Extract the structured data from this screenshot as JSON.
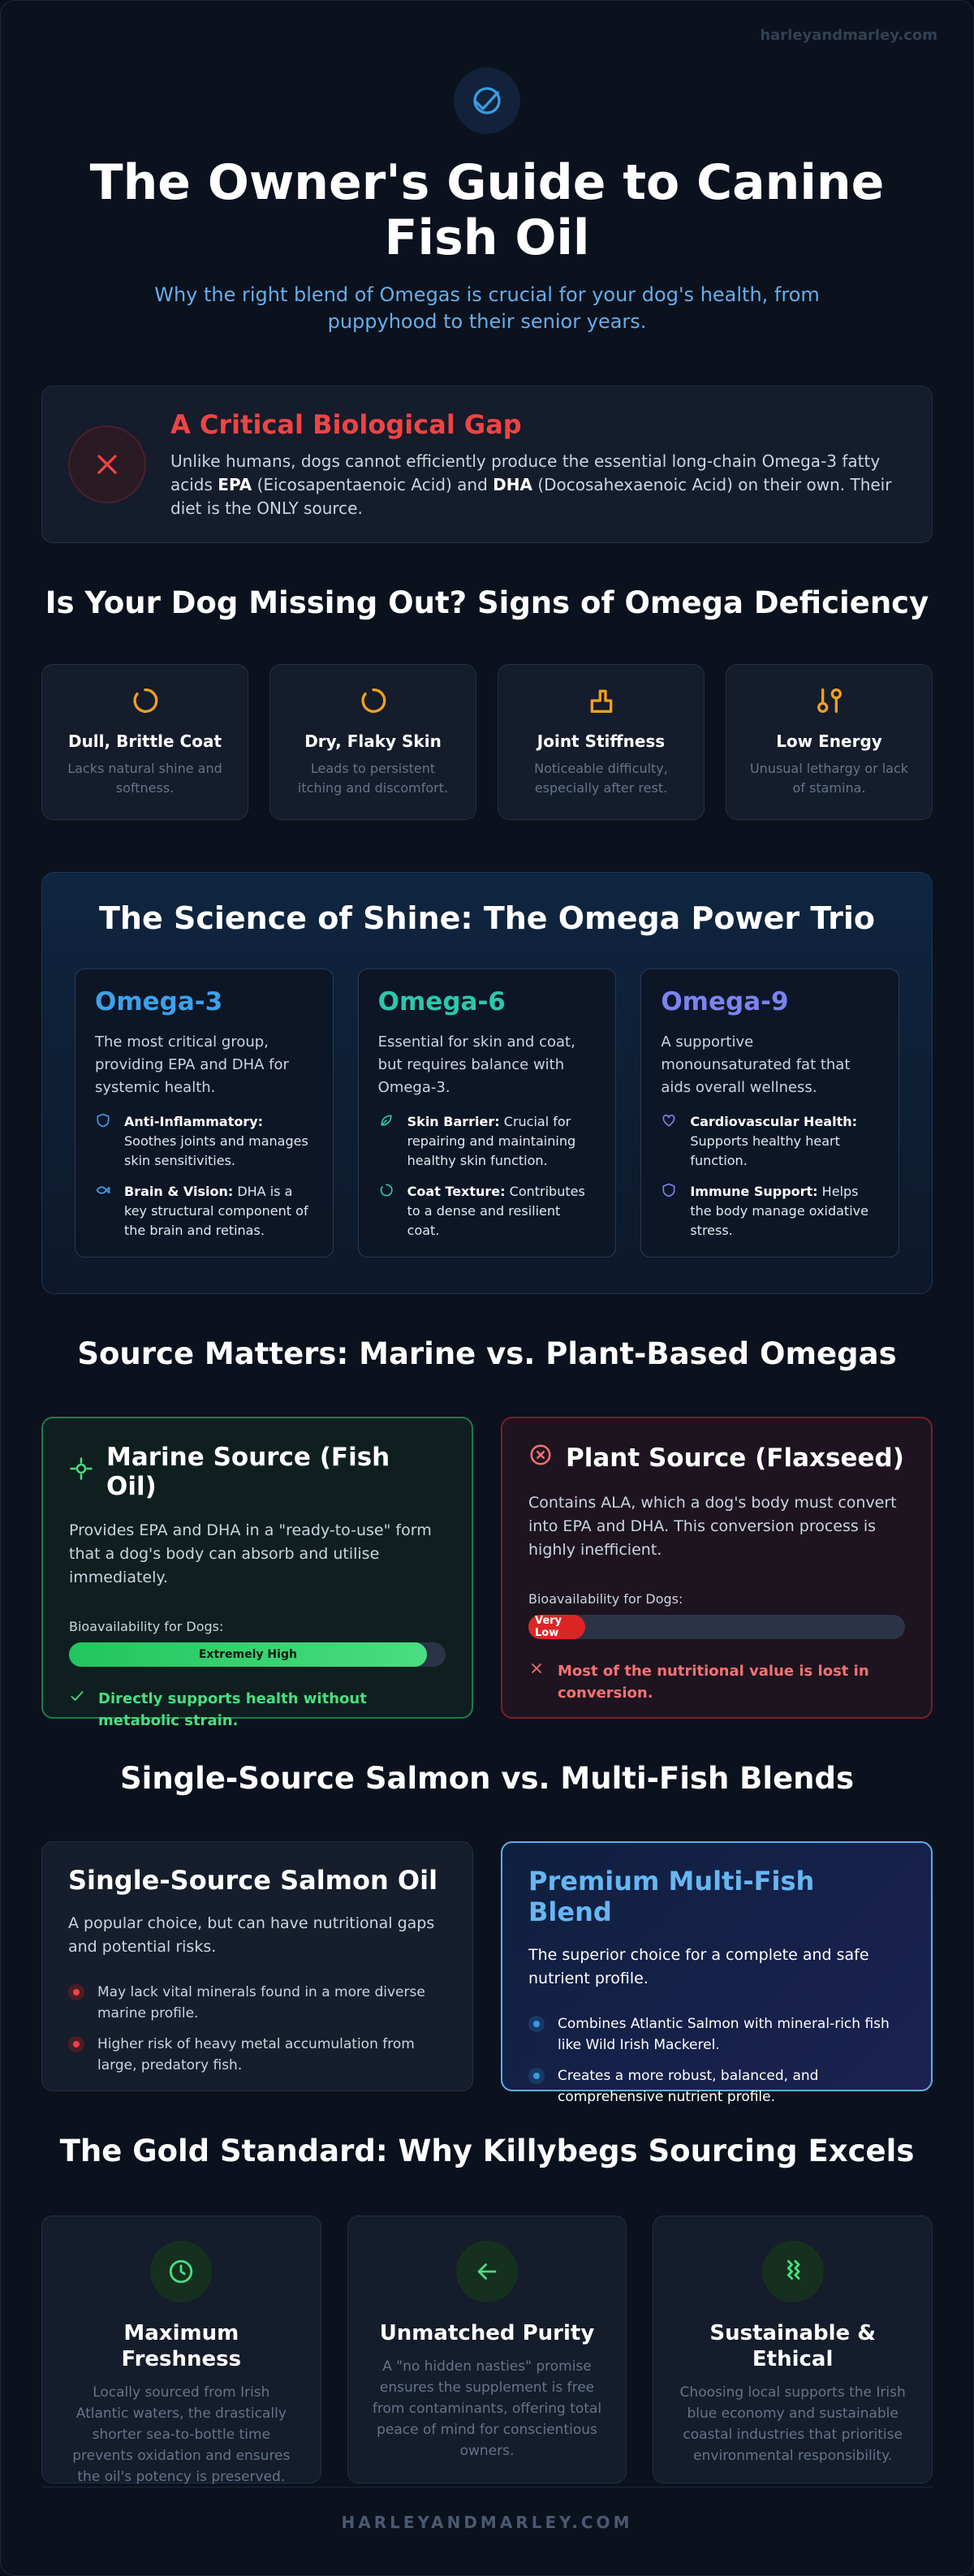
{
  "header": {
    "site": "harleyandmarley.com",
    "title": "The Owner's Guide to Canine Fish Oil",
    "subtitle": "Why the right blend of Omegas is crucial for your dog's health, from puppyhood to their senior years."
  },
  "alert": {
    "title": "A Critical Biological Gap",
    "text": [
      {
        "text": "Unlike humans, dogs cannot efficiently produce the essential long-chain Omega-3 fatty acids "
      },
      {
        "text": "EPA",
        "strong": true
      },
      {
        "text": " (Eicosapentaenoic Acid) and "
      },
      {
        "text": "DHA",
        "strong": true
      },
      {
        "text": " (Docosahexaenoic Acid) on their own. Their diet is the ONLY source."
      }
    ]
  },
  "deficiency": {
    "title": "Is Your Dog Missing Out? Signs of Omega Deficiency",
    "signs": [
      {
        "title": "Dull, Brittle Coat",
        "text": "Lacks natural shine and softness."
      },
      {
        "title": "Dry, Flaky Skin",
        "text": "Leads to persistent itching and discomfort."
      },
      {
        "title": "Joint Stiffness",
        "text": "Noticeable difficulty, especially after rest."
      },
      {
        "title": "Low Energy",
        "text": "Unusual lethargy or lack of stamina."
      }
    ]
  },
  "science": {
    "title": "The Science of Shine: The Omega Power Trio",
    "omegas": [
      {
        "name": "Omega-3",
        "color": "#3ea0ea",
        "intro": "The most critical group, providing EPA and DHA for systemic health.",
        "benefits": [
          {
            "label": "Anti-Inflammatory:",
            "text": "Soothes joints and manages skin sensitivities."
          },
          {
            "label": "Brain & Vision:",
            "text": "DHA is a key structural component of the brain and retinas."
          }
        ]
      },
      {
        "name": "Omega-6",
        "color": "#2cc7ac",
        "intro": "Essential for skin and coat, but requires balance with Omega-3.",
        "benefits": [
          {
            "label": "Skin Barrier:",
            "text": "Crucial for repairing and maintaining healthy skin function."
          },
          {
            "label": "Coat Texture:",
            "text": "Contributes to a dense and resilient coat."
          }
        ]
      },
      {
        "name": "Omega-9",
        "color": "#7c83f0",
        "intro": "A supportive monounsaturated fat that aids overall wellness.",
        "benefits": [
          {
            "label": "Cardiovascular Health:",
            "text": "Supports healthy heart function."
          },
          {
            "label": "Immune Support:",
            "text": "Helps the body manage oxidative stress."
          }
        ]
      }
    ]
  },
  "source": {
    "title": "Source Matters: Marine vs. Plant-Based Omegas",
    "cards": [
      {
        "title": "Marine Source (Fish Oil)",
        "text": "Provides EPA and DHA in a \"ready-to-use\" form that a dog's body can absorb and utilise immediately.",
        "bar_label": "Bioavailability for Dogs:",
        "bar_text": "Extremely High",
        "verdict": "Directly supports health without metabolic strain."
      },
      {
        "title": "Plant Source (Flaxseed)",
        "text": "Contains ALA, which a dog's body must convert into EPA and DHA. This conversion process is highly inefficient.",
        "bar_label": "Bioavailability for Dogs:",
        "bar_text": "Very Low",
        "verdict": "Most of the nutritional value is lost in conversion."
      }
    ]
  },
  "salmon": {
    "title": "Single-Source Salmon vs. Multi-Fish Blends",
    "cards": [
      {
        "title": "Single-Source Salmon Oil",
        "intro": "A popular choice, but can have nutritional gaps and potential risks.",
        "points": [
          "May lack vital minerals found in a more diverse marine profile.",
          "Higher risk of heavy metal accumulation from large, predatory fish."
        ]
      },
      {
        "title": "Premium Multi-Fish Blend",
        "intro": "The superior choice for a complete and safe nutrient profile.",
        "points": [
          "Combines Atlantic Salmon with mineral-rich fish like Wild Irish Mackerel.",
          "Creates a more robust, balanced, and comprehensive nutrient profile."
        ]
      }
    ]
  },
  "gold": {
    "title": "The Gold Standard: Why Killybegs Sourcing Excels",
    "cards": [
      {
        "title": "Maximum Freshness",
        "text": "Locally sourced from Irish Atlantic waters, the drastically shorter sea-to-bottle time prevents oxidation and ensures the oil's potency is preserved."
      },
      {
        "title": "Unmatched Purity",
        "text": "A \"no hidden nasties\" promise ensures the supplement is free from contaminants, offering total peace of mind for conscientious owners."
      },
      {
        "title": "Sustainable & Ethical",
        "text": "Choosing local supports the Irish blue economy and sustainable coastal industries that prioritise environmental responsibility."
      }
    ]
  },
  "footer": {
    "text": "HARLEYANDMARLEY.COM"
  }
}
